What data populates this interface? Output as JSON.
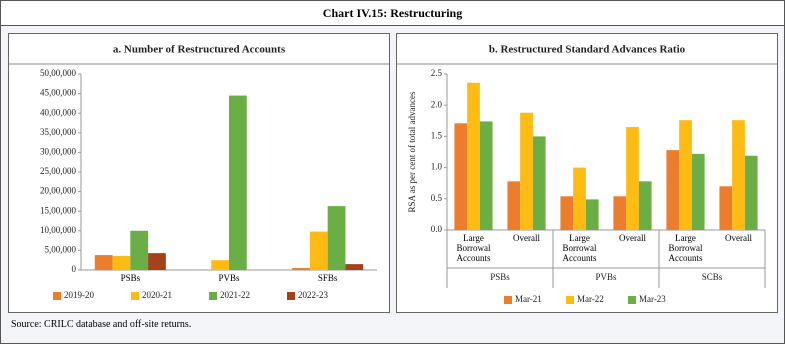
{
  "title": "Chart IV.15: Restructuring",
  "source": "Source: CRILC database and off-site returns.",
  "chart_data": [
    {
      "type": "bar",
      "title": "a. Number of Restructured Accounts",
      "categories": [
        "PSBs",
        "PVBs",
        "SFBs"
      ],
      "series": [
        {
          "name": "2019-20",
          "color": "#ec7d2c",
          "values": [
            380000,
            10000,
            50000
          ]
        },
        {
          "name": "2020-21",
          "color": "#fdbb14",
          "values": [
            360000,
            250000,
            980000
          ]
        },
        {
          "name": "2021-22",
          "color": "#6aae45",
          "values": [
            1000000,
            4450000,
            1630000
          ]
        },
        {
          "name": "2022-23",
          "color": "#a4421c",
          "values": [
            430000,
            0,
            150000
          ]
        }
      ],
      "ylim": [
        0,
        5000000
      ],
      "yticks": [
        0,
        {
          "value": 500000,
          "label": "5,00,000"
        },
        {
          "value": 1000000,
          "label": "10,00,000"
        },
        {
          "value": 1500000,
          "label": "15,00,000"
        },
        {
          "value": 2000000,
          "label": "20,00,000"
        },
        {
          "value": 2500000,
          "label": "25,00,000"
        },
        {
          "value": 3000000,
          "label": "30,00,000"
        },
        {
          "value": 3500000,
          "label": "35,00,000"
        },
        {
          "value": 4000000,
          "label": "40,00,000"
        },
        {
          "value": 4500000,
          "label": "45,00,000"
        },
        {
          "value": 5000000,
          "label": "50,00,000"
        }
      ],
      "grid": false
    },
    {
      "type": "bar",
      "title": "b. Restructured Standard Advances Ratio",
      "y_label": "RSA as per cent of total advances",
      "categories": [
        "Large Borrowal Accounts",
        "Overall",
        "Large Borrowal Accounts",
        "Overall",
        "Large Borrowal Accounts",
        "Overall"
      ],
      "groups": [
        "PSBs",
        "PVBs",
        "SCBs"
      ],
      "series": [
        {
          "name": "Mar-21",
          "color": "#ec7d2c",
          "values": [
            1.71,
            0.78,
            0.54,
            0.54,
            1.28,
            0.7
          ]
        },
        {
          "name": "Mar-22",
          "color": "#fdbb14",
          "values": [
            2.36,
            1.88,
            1.0,
            1.65,
            1.76,
            1.76
          ]
        },
        {
          "name": "Mar-23",
          "color": "#6aae45",
          "values": [
            1.74,
            1.5,
            0.49,
            0.78,
            1.22,
            1.19
          ]
        }
      ],
      "ylim": [
        0,
        2.5
      ],
      "yticks": [
        {
          "value": 0,
          "label": "0.0"
        },
        0.5,
        {
          "value": 1,
          "label": "1.0"
        },
        1.5,
        {
          "value": 2,
          "label": "2.0"
        },
        2.5
      ],
      "grid": false
    }
  ]
}
